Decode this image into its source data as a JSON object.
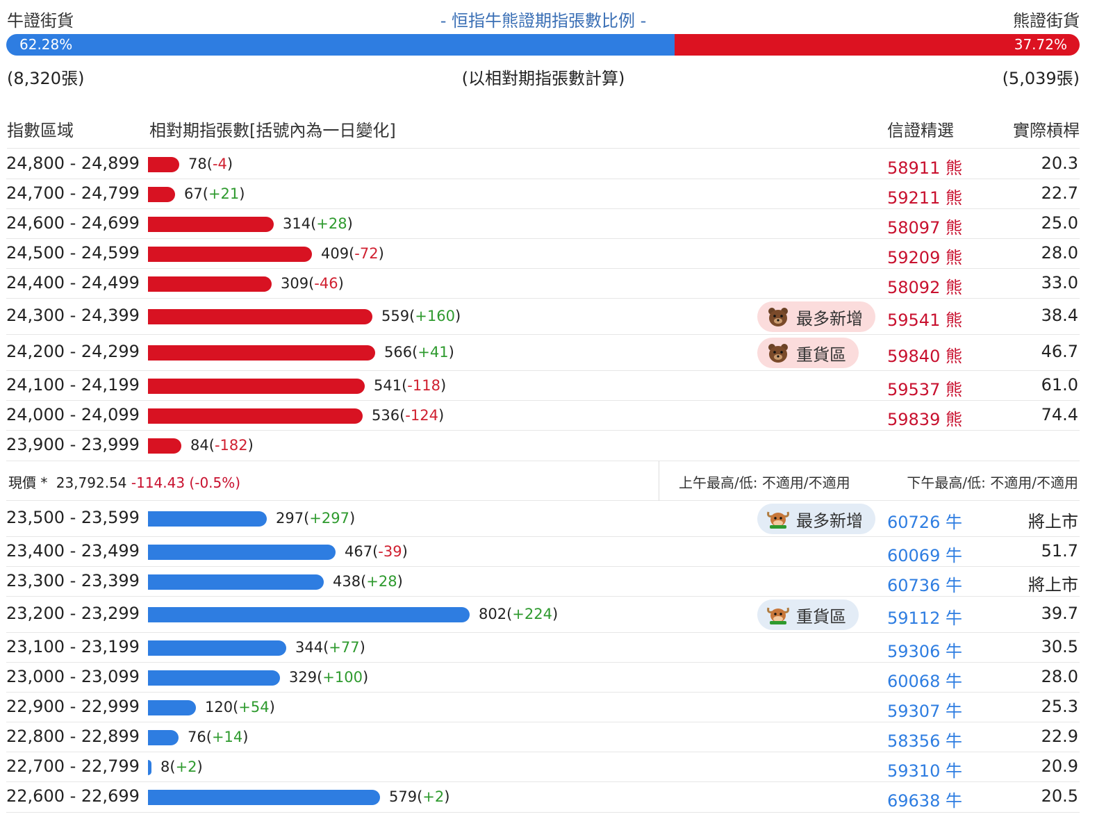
{
  "header": {
    "left_label": "牛證街貨",
    "title": "- 恒指牛熊證期指張數比例 -",
    "right_label": "熊證街貨",
    "bull_percent_text": "62.28%",
    "bear_percent_text": "37.72%",
    "bull_ratio": 0.6228,
    "bull_count": "(8,320張)",
    "note": "(以相對期指張數計算)",
    "bear_count": "(5,039張)"
  },
  "columns": {
    "range": "指數區域",
    "contracts": "相對期指張數[括號內為一日變化]",
    "pick": "信證精選",
    "leverage": "實際槓桿"
  },
  "max_contracts": 802,
  "bear_rows": [
    {
      "range": "24,800 - 24,899",
      "count": 78,
      "count_text": "78",
      "change": "-4",
      "code": "58911 熊",
      "leverage": "20.3",
      "badge": ""
    },
    {
      "range": "24,700 - 24,799",
      "count": 67,
      "count_text": "67",
      "change": "+21",
      "code": "59211 熊",
      "leverage": "22.7",
      "badge": ""
    },
    {
      "range": "24,600 - 24,699",
      "count": 314,
      "count_text": "314",
      "change": "+28",
      "code": "58097 熊",
      "leverage": "25.0",
      "badge": ""
    },
    {
      "range": "24,500 - 24,599",
      "count": 409,
      "count_text": "409",
      "change": "-72",
      "code": "59209 熊",
      "leverage": "28.0",
      "badge": ""
    },
    {
      "range": "24,400 - 24,499",
      "count": 309,
      "count_text": "309",
      "change": "-46",
      "code": "58092 熊",
      "leverage": "33.0",
      "badge": ""
    },
    {
      "range": "24,300 - 24,399",
      "count": 559,
      "count_text": "559",
      "change": "+160",
      "code": "59541 熊",
      "leverage": "38.4",
      "badge": "最多新增"
    },
    {
      "range": "24,200 - 24,299",
      "count": 566,
      "count_text": "566",
      "change": "+41",
      "code": "59840 熊",
      "leverage": "46.7",
      "badge": "重貨區"
    },
    {
      "range": "24,100 - 24,199",
      "count": 541,
      "count_text": "541",
      "change": "-118",
      "code": "59537 熊",
      "leverage": "61.0",
      "badge": ""
    },
    {
      "range": "24,000 - 24,099",
      "count": 536,
      "count_text": "536",
      "change": "-124",
      "code": "59839 熊",
      "leverage": "74.4",
      "badge": ""
    },
    {
      "range": "23,900 - 23,999",
      "count": 84,
      "count_text": "84",
      "change": "-182",
      "code": "",
      "leverage": "",
      "badge": ""
    }
  ],
  "price": {
    "label": "現價 *",
    "value": "23,792.54",
    "change": "-114.43 (-0.5%)",
    "am": "上午最高/低: 不適用/不適用",
    "pm": "下午最高/低: 不適用/不適用"
  },
  "bull_rows": [
    {
      "range": "23,500 - 23,599",
      "count": 297,
      "count_text": "297",
      "change": "+297",
      "code": "60726 牛",
      "leverage": "將上市",
      "badge": "最多新增"
    },
    {
      "range": "23,400 - 23,499",
      "count": 467,
      "count_text": "467",
      "change": "-39",
      "code": "60069 牛",
      "leverage": "51.7",
      "badge": ""
    },
    {
      "range": "23,300 - 23,399",
      "count": 438,
      "count_text": "438",
      "change": "+28",
      "code": "60736 牛",
      "leverage": "將上市",
      "badge": ""
    },
    {
      "range": "23,200 - 23,299",
      "count": 802,
      "count_text": "802",
      "change": "+224",
      "code": "59112 牛",
      "leverage": "39.7",
      "badge": "重貨區"
    },
    {
      "range": "23,100 - 23,199",
      "count": 344,
      "count_text": "344",
      "change": "+77",
      "code": "59306 牛",
      "leverage": "30.5",
      "badge": ""
    },
    {
      "range": "23,000 - 23,099",
      "count": 329,
      "count_text": "329",
      "change": "+100",
      "code": "60068 牛",
      "leverage": "28.0",
      "badge": ""
    },
    {
      "range": "22,900 - 22,999",
      "count": 120,
      "count_text": "120",
      "change": "+54",
      "code": "59307 牛",
      "leverage": "25.3",
      "badge": ""
    },
    {
      "range": "22,800 - 22,899",
      "count": 76,
      "count_text": "76",
      "change": "+14",
      "code": "58356 牛",
      "leverage": "22.9",
      "badge": ""
    },
    {
      "range": "22,700 - 22,799",
      "count": 8,
      "count_text": "8",
      "change": "+2",
      "code": "59310 牛",
      "leverage": "20.9",
      "badge": ""
    },
    {
      "range": "22,600 - 22,699",
      "count": 579,
      "count_text": "579",
      "change": "+2",
      "code": "69638 牛",
      "leverage": "20.5",
      "badge": ""
    }
  ],
  "colors": {
    "bull": "#2e7de1",
    "bear": "#d81222",
    "positive": "#2e9a2e",
    "negative": "#d02030"
  }
}
